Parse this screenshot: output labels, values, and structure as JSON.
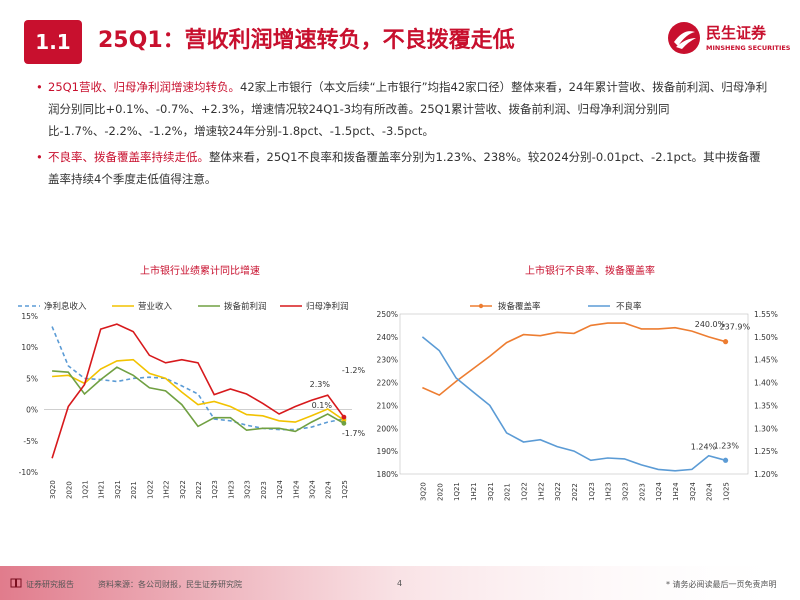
{
  "header": {
    "section": "1.1",
    "title": "25Q1：营收利润增速转负，不良拨覆走低",
    "logo_cn": "民生证券",
    "logo_en": "MINSHENG SECURITIES"
  },
  "bullets": [
    {
      "lead": "25Q1营收、归母净利润增速均转负。",
      "text": "42家上市银行（本文后续“上市银行”均指42家口径）整体来看，24年累计营收、拨备前利润、归母净利润分别同比+0.1%、-0.7%、+2.3%，增速情况较24Q1-3均有所改善。25Q1累计营收、拨备前利润、归母净利润分别同比-1.7%、-2.2%、-1.2%，增速较24年分别-1.8pct、-1.5pct、-3.5pct。"
    },
    {
      "lead": "不良率、拨备覆盖率持续走低。",
      "text": "整体来看，25Q1不良率和拨备覆盖率分别为1.23%、238%。较2024分别-0.01pct、-2.1pct。其中拨备覆盖率持续4个季度走低值得注意。"
    }
  ],
  "footer": {
    "left": "证券研究报告",
    "source": "资料来源：各公司财报，民生证券研究院",
    "page": "4",
    "disclaimer": "* 请务必阅读最后一页免责声明"
  },
  "colors": {
    "brand": "#c8102e",
    "growth_nii": "#5b9bd5",
    "growth_rev": "#f2c200",
    "growth_ppop": "#70a042",
    "growth_np": "#d7191c",
    "coverage": "#ed7d31",
    "npl": "#5b9bd5"
  },
  "chart_data": [
    {
      "type": "line",
      "title": "上市银行业绩累计同比增速",
      "categories": [
        "3Q20",
        "2020",
        "1Q21",
        "1H21",
        "3Q21",
        "2021",
        "1Q22",
        "1H22",
        "3Q22",
        "2022",
        "1Q23",
        "1H23",
        "3Q23",
        "2023",
        "1Q24",
        "1H24",
        "3Q24",
        "2024",
        "1Q25"
      ],
      "ylim": [
        -10,
        15
      ],
      "yticks": [
        -10,
        -5,
        0,
        5,
        10,
        15
      ],
      "ytick_labels": [
        "-10%",
        "-5%",
        "0%",
        "5%",
        "10%",
        "15%"
      ],
      "series": [
        {
          "name": "净利息收入",
          "style": "dashed",
          "values": [
            13.3,
            7.0,
            5.0,
            4.8,
            4.5,
            5.0,
            5.2,
            5.0,
            3.8,
            2.5,
            -1.5,
            -1.8,
            -2.5,
            -3.0,
            -3.2,
            -3.2,
            -2.8,
            -2.0,
            -1.5
          ]
        },
        {
          "name": "营业收入",
          "style": "solid",
          "values": [
            5.3,
            5.5,
            4.2,
            6.5,
            7.8,
            8.0,
            5.8,
            5.0,
            2.8,
            0.8,
            1.3,
            0.5,
            -0.8,
            -1.0,
            -1.8,
            -2.0,
            -1.0,
            0.1,
            -1.7
          ]
        },
        {
          "name": "拨备前利润",
          "style": "solid",
          "values": [
            6.2,
            6.0,
            2.5,
            4.8,
            6.8,
            5.5,
            3.5,
            3.0,
            0.8,
            -2.7,
            -1.3,
            -1.3,
            -3.3,
            -3.0,
            -3.0,
            -3.5,
            -2.0,
            -0.7,
            -2.2
          ]
        },
        {
          "name": "归母净利润",
          "style": "solid",
          "values": [
            -7.8,
            0.5,
            4.0,
            12.9,
            13.7,
            12.5,
            8.7,
            7.5,
            8.0,
            7.5,
            2.4,
            3.3,
            2.5,
            1.0,
            -0.7,
            0.5,
            1.5,
            2.3,
            -1.2
          ]
        }
      ],
      "annotations": [
        "2.3%",
        "-1.2%",
        "0.1%",
        "-1.7%"
      ]
    },
    {
      "type": "line",
      "title": "上市银行不良率、拨备覆盖率",
      "categories": [
        "3Q20",
        "2020",
        "1Q21",
        "1H21",
        "3Q21",
        "2021",
        "1Q22",
        "1H22",
        "3Q22",
        "2022",
        "1Q23",
        "1H23",
        "3Q23",
        "2023",
        "1Q24",
        "1H24",
        "3Q24",
        "2024",
        "1Q25"
      ],
      "y_left": {
        "range": [
          180,
          250
        ],
        "ticks": [
          180,
          190,
          200,
          210,
          220,
          230,
          240,
          250
        ],
        "tick_labels": [
          "180%",
          "190%",
          "200%",
          "210%",
          "220%",
          "230%",
          "240%",
          "250%"
        ]
      },
      "y_right": {
        "range": [
          1.2,
          1.55
        ],
        "ticks": [
          1.2,
          1.25,
          1.3,
          1.35,
          1.4,
          1.45,
          1.5,
          1.55
        ],
        "tick_labels": [
          "1.20%",
          "1.25%",
          "1.30%",
          "1.35%",
          "1.40%",
          "1.45%",
          "1.50%",
          "1.55%"
        ]
      },
      "series": [
        {
          "name": "拨备覆盖率",
          "axis": "left",
          "values": [
            217.8,
            214.5,
            220.5,
            226.0,
            231.5,
            237.5,
            241.0,
            240.5,
            242.0,
            241.5,
            245.0,
            246.0,
            246.0,
            243.5,
            243.5,
            244.0,
            242.5,
            240.0,
            237.9
          ]
        },
        {
          "name": "不良率",
          "axis": "right",
          "values": [
            1.5,
            1.47,
            1.41,
            1.38,
            1.35,
            1.29,
            1.27,
            1.275,
            1.26,
            1.25,
            1.23,
            1.235,
            1.233,
            1.22,
            1.21,
            1.207,
            1.21,
            1.24,
            1.23
          ]
        }
      ],
      "annotations": [
        "240.0%",
        "237.9%",
        "1.24%",
        "1.23%"
      ]
    }
  ]
}
